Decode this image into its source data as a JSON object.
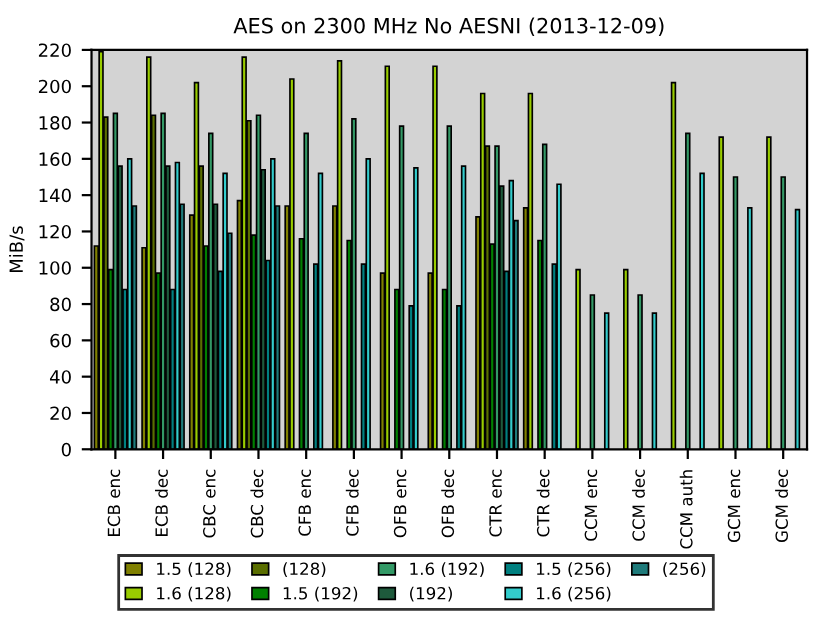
{
  "chart_data": {
    "type": "bar",
    "title": "AES on 2300 MHz No AESNI (2013-12-09)",
    "ylabel": "MiB/s",
    "categories": [
      "ECB enc",
      "ECB dec",
      "CBC enc",
      "CBC dec",
      "CFB enc",
      "CFB dec",
      "OFB enc",
      "OFB dec",
      "CTR enc",
      "CTR dec",
      "CCM enc",
      "CCM dec",
      "CCM auth",
      "GCM enc",
      "GCM dec"
    ],
    "series": [
      {
        "name": "1.5 (128)",
        "color": "#808000",
        "values": [
          112,
          111,
          129,
          137,
          134,
          134,
          97,
          97,
          128,
          133,
          null,
          null,
          null,
          null,
          null
        ]
      },
      {
        "name": "1.6 (128)",
        "color": "#99cc00",
        "values": [
          219,
          216,
          202,
          216,
          204,
          214,
          211,
          211,
          196,
          196,
          99,
          99,
          202,
          172,
          172
        ]
      },
      {
        "name": "(128)",
        "color": "#5a6e00",
        "values": [
          183,
          184,
          156,
          181,
          null,
          null,
          null,
          null,
          167,
          null,
          null,
          null,
          null,
          null,
          null
        ]
      },
      {
        "name": "1.5 (192)",
        "color": "#008000",
        "values": [
          99,
          97,
          112,
          118,
          116,
          115,
          88,
          88,
          113,
          115,
          null,
          null,
          null,
          null,
          null
        ]
      },
      {
        "name": "1.6 (192)",
        "color": "#339966",
        "values": [
          185,
          185,
          174,
          184,
          174,
          182,
          178,
          178,
          167,
          168,
          85,
          85,
          174,
          150,
          150
        ]
      },
      {
        "name": "(192)",
        "color": "#1e5a3c",
        "values": [
          156,
          156,
          135,
          154,
          null,
          null,
          null,
          null,
          145,
          null,
          null,
          null,
          null,
          null,
          null
        ]
      },
      {
        "name": "1.5 (256)",
        "color": "#008080",
        "values": [
          88,
          88,
          98,
          104,
          102,
          102,
          79,
          79,
          98,
          102,
          null,
          null,
          null,
          null,
          null
        ]
      },
      {
        "name": "1.6 (256)",
        "color": "#33cccc",
        "values": [
          160,
          158,
          152,
          160,
          152,
          160,
          155,
          156,
          148,
          146,
          75,
          75,
          152,
          133,
          132
        ]
      },
      {
        "name": "(256)",
        "color": "#1e7a7a",
        "values": [
          134,
          135,
          119,
          134,
          null,
          null,
          null,
          null,
          126,
          null,
          null,
          null,
          null,
          null,
          null
        ]
      }
    ],
    "ylim": [
      0,
      220
    ],
    "yticks": [
      0,
      20,
      40,
      60,
      80,
      100,
      120,
      140,
      160,
      180,
      200,
      220
    ],
    "grid": false,
    "legend": "bottom"
  }
}
